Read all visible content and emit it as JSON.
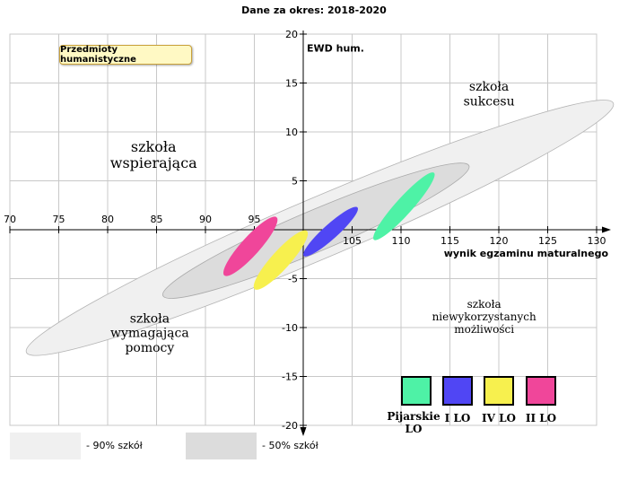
{
  "chart_data": {
    "type": "scatter",
    "title": "Dane za okres: 2018-2020",
    "badge": "Przedmioty humanistyczne",
    "xlabel": "wynik egzaminu maturalnego",
    "ylabel": "EWD hum.",
    "xlim": [
      70,
      130
    ],
    "ylim": [
      -20,
      20
    ],
    "x_ticks": [
      70,
      75,
      80,
      85,
      90,
      95,
      100,
      105,
      110,
      115,
      120,
      125,
      130
    ],
    "y_ticks": [
      -20,
      -15,
      -10,
      -5,
      5,
      10,
      15,
      20
    ],
    "x_tick_labels": [
      "70",
      "75",
      "80",
      "85",
      "90",
      "95",
      "",
      "105",
      "110",
      "115",
      "120",
      "125",
      "130"
    ],
    "grid": true,
    "quadrants": [
      {
        "lines": [
          "szkoła",
          "sukcesu"
        ],
        "x": 119,
        "y": 14.2,
        "size": 14
      },
      {
        "lines": [
          "szkoła",
          "wspierająca"
        ],
        "x": 84.7,
        "y": 8,
        "size": 16
      },
      {
        "lines": [
          "szkoła",
          "wymagająca",
          "pomocy"
        ],
        "x": 84.3,
        "y": -9.5,
        "size": 14
      },
      {
        "lines": [
          "szkoła",
          "niewykorzystanych",
          "możliwości"
        ],
        "x": 118.5,
        "y": -8,
        "size": 12
      }
    ],
    "reference_ellipses": [
      {
        "name": "90% szkół",
        "cx": 101.7,
        "cy": 0.2,
        "rx": 32.6,
        "ry": 3.1,
        "angle_deg": 23,
        "color": "#f0f0f0",
        "edge": "#b4b4b4"
      },
      {
        "name": "50% szkół",
        "cx": 101.3,
        "cy": -0.1,
        "rx": 17,
        "ry": 2.1,
        "angle_deg": 23,
        "color": "#dcdcdc",
        "edge": "#aaaaaa"
      }
    ],
    "series": [
      {
        "name": "Pijarskie LO",
        "cx": 110.3,
        "cy": 2.4,
        "rx": 4.6,
        "ry": 0.85,
        "angle_deg": 48,
        "color": "#4ef2a6"
      },
      {
        "name": "I LO",
        "cx": 102.8,
        "cy": -0.2,
        "rx": 3.7,
        "ry": 0.75,
        "angle_deg": 42,
        "color": "#5046f4"
      },
      {
        "name": "IV LO",
        "cx": 97.7,
        "cy": -3.1,
        "rx": 4.0,
        "ry": 0.95,
        "angle_deg": 48,
        "color": "#f7f04e"
      },
      {
        "name": "II LO",
        "cx": 94.6,
        "cy": -1.7,
        "rx": 4.0,
        "ry": 0.95,
        "angle_deg": 48,
        "color": "#f0469a"
      }
    ]
  },
  "legend": {
    "p90": "- 90% szkół",
    "p50": "- 50% szkół"
  }
}
